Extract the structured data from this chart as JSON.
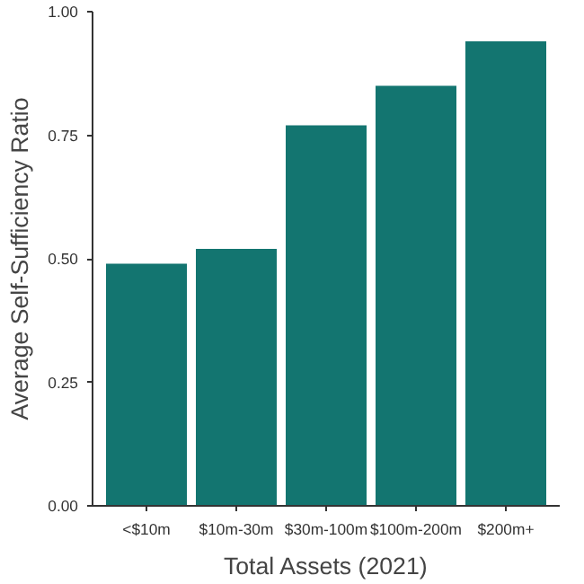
{
  "chart_data": {
    "type": "bar",
    "xlabel": "Total Assets (2021)",
    "ylabel": "Average Self-Sufficiency Ratio",
    "categories": [
      "<$10m",
      "$10m-30m",
      "$30m-100m",
      "$100m-200m",
      "$200m+"
    ],
    "values": [
      0.49,
      0.52,
      0.77,
      0.85,
      0.94
    ],
    "color": "#137570",
    "ylim": [
      0,
      1
    ],
    "yticks": [
      {
        "value": 0,
        "label": "0.00"
      },
      {
        "value": 0.25,
        "label": "0.25"
      },
      {
        "value": 0.5,
        "label": "0.50"
      },
      {
        "value": 0.75,
        "label": "0.75"
      },
      {
        "value": 1,
        "label": "1.00"
      }
    ],
    "grid": false
  }
}
